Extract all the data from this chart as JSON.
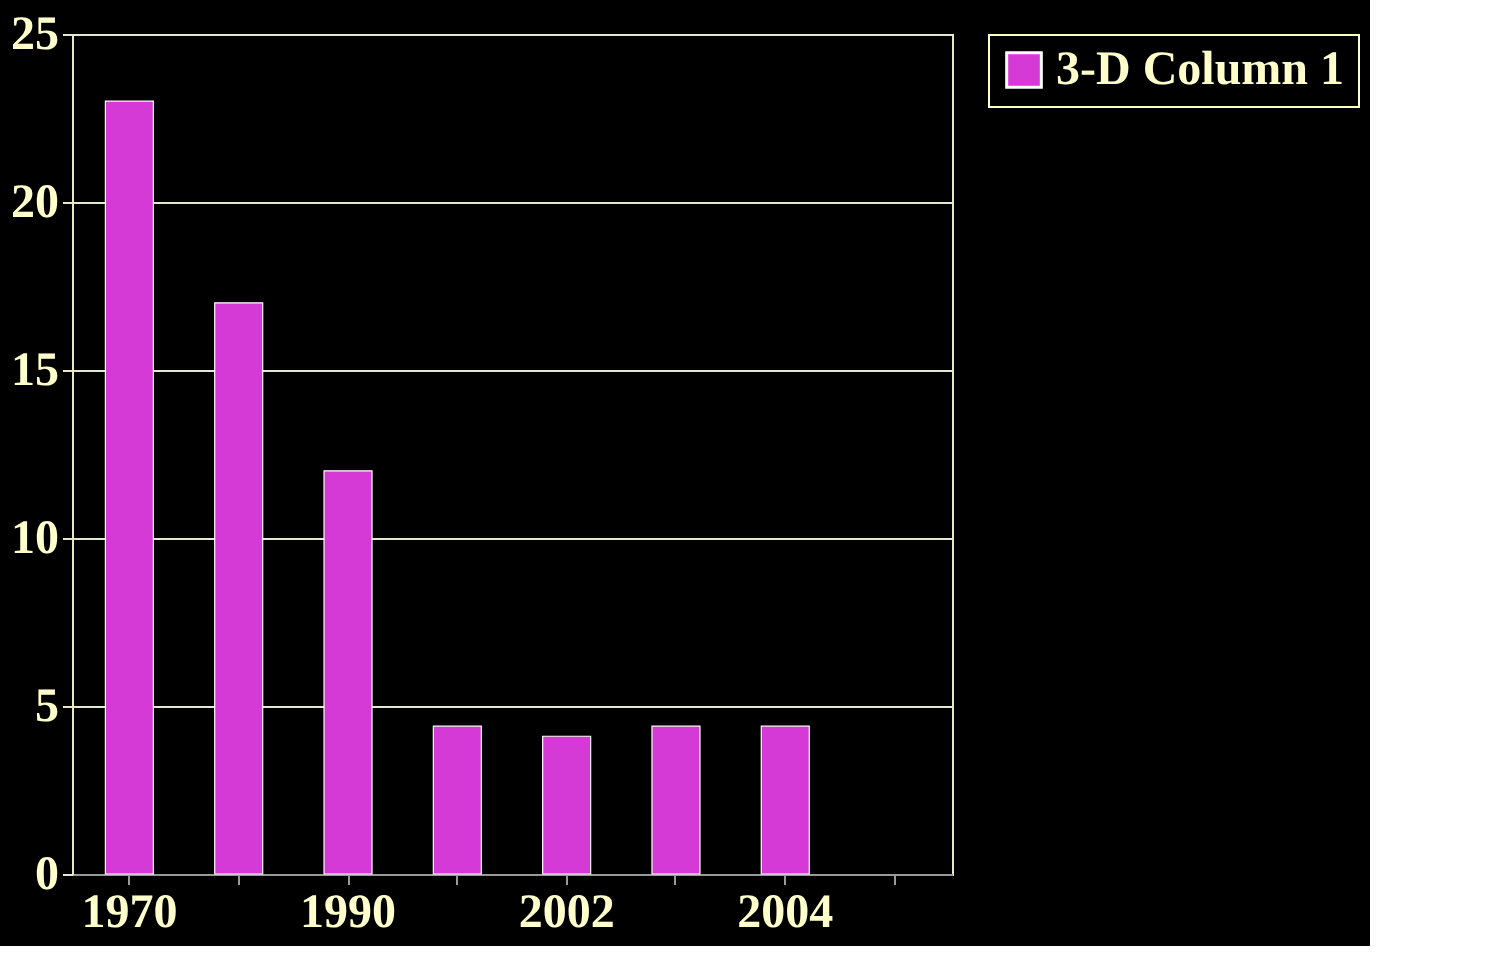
{
  "chart_data": {
    "type": "bar",
    "categories": [
      "1970",
      null,
      "1990",
      null,
      "2002",
      null,
      "2004",
      null
    ],
    "series": [
      {
        "name": "3-D Column 1",
        "color": "#d63ad6",
        "values": [
          23,
          17,
          12,
          4.4,
          4.1,
          4.4,
          4.4,
          null
        ]
      }
    ],
    "ylim": [
      0,
      25
    ],
    "yticks": [
      0,
      5,
      10,
      15,
      20,
      25
    ],
    "grid": "y",
    "legend": "right"
  }
}
